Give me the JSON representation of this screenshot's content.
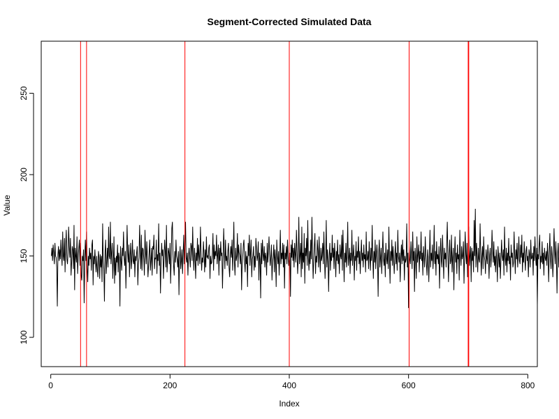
{
  "chart_data": {
    "type": "line",
    "title": "Segment-Corrected Simulated Data",
    "xlabel": "Index",
    "ylabel": "Value",
    "xlim": [
      -16,
      816
    ],
    "ylim": [
      82,
      282
    ],
    "x_ticks": [
      0,
      200,
      400,
      600,
      800
    ],
    "y_ticks": [
      100,
      150,
      200,
      250
    ],
    "grid": false,
    "series": [
      {
        "color": "#000000",
        "x_start": 1,
        "values": [
          150,
          155,
          147,
          157,
          152,
          145,
          158,
          150,
          149,
          143,
          119,
          151,
          156,
          147,
          154,
          148,
          160,
          151,
          144,
          165,
          150,
          147,
          161,
          140,
          157,
          166,
          148,
          145,
          152,
          168,
          156,
          149,
          161,
          138,
          146,
          156,
          154,
          142,
          169,
          129,
          155,
          150,
          146,
          162,
          139,
          149,
          155,
          160,
          144,
          158,
          138,
          135,
          150,
          147,
          154,
          121,
          148,
          160,
          147,
          165,
          143,
          134,
          150,
          144,
          155,
          148,
          152,
          141,
          157,
          160,
          132,
          150,
          145,
          154,
          146,
          140,
          150,
          142,
          137,
          153,
          149,
          136,
          151,
          143,
          150,
          134,
          170,
          147,
          142,
          122,
          152,
          160,
          139,
          147,
          155,
          143,
          168,
          150,
          148,
          171,
          145,
          152,
          158,
          136,
          147,
          162,
          133,
          149,
          138,
          150,
          146,
          157,
          140,
          152,
          149,
          119,
          156,
          147,
          141,
          155,
          150,
          165,
          149,
          144,
          153,
          130,
          148,
          169,
          152,
          146,
          157,
          137,
          150,
          158,
          142,
          148,
          160,
          147,
          145,
          154,
          137,
          150,
          147,
          152,
          156,
          132,
          145,
          149,
          169,
          153,
          142,
          163,
          141,
          155,
          154,
          148,
          138,
          166,
          153,
          145,
          159,
          150,
          137,
          144,
          152,
          160,
          141,
          147,
          155,
          138,
          156,
          154,
          163,
          142,
          149,
          148,
          160,
          139,
          151,
          147,
          170,
          144,
          152,
          127,
          146,
          158,
          150,
          154,
          136,
          149,
          160,
          153,
          143,
          169,
          140,
          147,
          155,
          152,
          145,
          158,
          133,
          149,
          167,
          171,
          151,
          144,
          138,
          153,
          146,
          160,
          150,
          148,
          143,
          153,
          126,
          149,
          156,
          142,
          147,
          154,
          139,
          151,
          163,
          145,
          157,
          171,
          149,
          146,
          152,
          138,
          150,
          155,
          149,
          143,
          158,
          156,
          147,
          168,
          150,
          141,
          155,
          149,
          136,
          152,
          147,
          161,
          144,
          157,
          150,
          145,
          168,
          153,
          141,
          149,
          146,
          159,
          151,
          140,
          154,
          143,
          162,
          149,
          150,
          148,
          155,
          157,
          136,
          150,
          145,
          146,
          152,
          164,
          141,
          157,
          148,
          153,
          150,
          163,
          145,
          151,
          157,
          138,
          155,
          147,
          159,
          150,
          152,
          130,
          148,
          167,
          153,
          142,
          160,
          147,
          150,
          144,
          153,
          158,
          143,
          137,
          150,
          156,
          149,
          160,
          141,
          152,
          171,
          146,
          138,
          155,
          147,
          150,
          164,
          143,
          157,
          152,
          150,
          145,
          158,
          129,
          145,
          150,
          157,
          160,
          146,
          140,
          153,
          145,
          150,
          131,
          158,
          150,
          163,
          144,
          152,
          160,
          137,
          148,
          150,
          156,
          141,
          150,
          143,
          161,
          155,
          147,
          150,
          159,
          135,
          152,
          148,
          124,
          158,
          145,
          160,
          151,
          147,
          156,
          143,
          152,
          149,
          138,
          158,
          146,
          153,
          162,
          151,
          144,
          149,
          157,
          135,
          146,
          150,
          157,
          140,
          154,
          148,
          131,
          160,
          150,
          145,
          153,
          138,
          150,
          166,
          145,
          152,
          148,
          158,
          143,
          157,
          130,
          152,
          148,
          156,
          145,
          160,
          150,
          144,
          148,
          152,
          125,
          157,
          149,
          160,
          147,
          155,
          143,
          158,
          151,
          146,
          166,
          153,
          139,
          148,
          174,
          145,
          150,
          158,
          137,
          168,
          142,
          152,
          146,
          164,
          133,
          155,
          150,
          161,
          144,
          172,
          149,
          141,
          153,
          145,
          160,
          148,
          174,
          152,
          136,
          148,
          156,
          164,
          139,
          150,
          146,
          160,
          153,
          143,
          162,
          149,
          140,
          155,
          147,
          150,
          158,
          145,
          165,
          150,
          136,
          149,
          172,
          143,
          154,
          147,
          128,
          150,
          158,
          141,
          152,
          147,
          163,
          149,
          155,
          142,
          158,
          150,
          137,
          153,
          147,
          160,
          145,
          151,
          139,
          157,
          150,
          148,
          163,
          141,
          166,
          150,
          134,
          152,
          146,
          158,
          143,
          150,
          171,
          144,
          149,
          155,
          139,
          152,
          147,
          166,
          144,
          151,
          157,
          135,
          150,
          147,
          159,
          141,
          153,
          149,
          162,
          145,
          153,
          139,
          150,
          160,
          147,
          152,
          143,
          157,
          148,
          151,
          140,
          165,
          147,
          148,
          153,
          142,
          159,
          150,
          141,
          155,
          147,
          169,
          150,
          136,
          153,
          146,
          160,
          142,
          151,
          157,
          148,
          125,
          152,
          160,
          143,
          149,
          155,
          139,
          151,
          165,
          148,
          144,
          152,
          137,
          158,
          149,
          145,
          154,
          142,
          168,
          150,
          133,
          153,
          147,
          160,
          144,
          156,
          148,
          139,
          150,
          159,
          145,
          152,
          141,
          166,
          150,
          146,
          152,
          134,
          149,
          157,
          145,
          160,
          147,
          154,
          135,
          150,
          146,
          148,
          170,
          143,
          152,
          118,
          156,
          148,
          145,
          159,
          150,
          142,
          165,
          147,
          153,
          128,
          155,
          149,
          136,
          162,
          146,
          151,
          157,
          140,
          153,
          148,
          165,
          147,
          152,
          138,
          156,
          149,
          143,
          162,
          151,
          145,
          138,
          154,
          149,
          134,
          150,
          166,
          143,
          152,
          147,
          157,
          142,
          150,
          169,
          145,
          153,
          138,
          159,
          148,
          151,
          145,
          156,
          130,
          150,
          161,
          147,
          143,
          163,
          150,
          136,
          155,
          148,
          152,
          143,
          158,
          171,
          149,
          134,
          151,
          160,
          145,
          147,
          163,
          140,
          149,
          155,
          129,
          150,
          162,
          146,
          152,
          139,
          157,
          148,
          151,
          135,
          166,
          150,
          144,
          156,
          148,
          150,
          159,
          133,
          149,
          165,
          151,
          145,
          158,
          137,
          152,
          168,
          144,
          150,
          156,
          134,
          155,
          147,
          153,
          140,
          172,
          150,
          179,
          143,
          158,
          150,
          140,
          155,
          148,
          146,
          170,
          152,
          138,
          150,
          156,
          142,
          162,
          150,
          147,
          139,
          154,
          149,
          145,
          157,
          151,
          136,
          150,
          155,
          143,
          149,
          166,
          153,
          146,
          159,
          144,
          150,
          140,
          154,
          148,
          134,
          156,
          150,
          143,
          152,
          136,
          148,
          160,
          150,
          147,
          154,
          138,
          168,
          149,
          144,
          155,
          140,
          152,
          147,
          161,
          145,
          150,
          135,
          157,
          149,
          152,
          143,
          146,
          165,
          151,
          139,
          154,
          148,
          158,
          143,
          150,
          162,
          147,
          145,
          157,
          149,
          163,
          140,
          152,
          146,
          159,
          148,
          141,
          153,
          156,
          147,
          150,
          137,
          154,
          151,
          143,
          160,
          148,
          149,
          152,
          138,
          156,
          147,
          162,
          150,
          144,
          155,
          120,
          151,
          148,
          157,
          163,
          142,
          150,
          146,
          159,
          145,
          152,
          138,
          155,
          149,
          147,
          153,
          144,
          158,
          150,
          134,
          151,
          164,
          148,
          142,
          156,
          150,
          137,
          149,
          167,
          153,
          145,
          159,
          148,
          127,
          151,
          158,
          143,
          150,
          155,
          146,
          160,
          149,
          138,
          152,
          170,
          147,
          143,
          162,
          150,
          139,
          154,
          148,
          160,
          145,
          153,
          136,
          151,
          155,
          147,
          149,
          158,
          141,
          153,
          126,
          160,
          150,
          143,
          156,
          147,
          150,
          152,
          139,
          157,
          145,
          174,
          149,
          142,
          153,
          148,
          158,
          147,
          151,
          136,
          155,
          149,
          130,
          153,
          160,
          148,
          147,
          162,
          143
        ]
      }
    ],
    "vlines": {
      "color": "#ff0000",
      "positions": [
        50,
        60,
        225,
        400,
        601,
        700,
        701
      ]
    }
  }
}
